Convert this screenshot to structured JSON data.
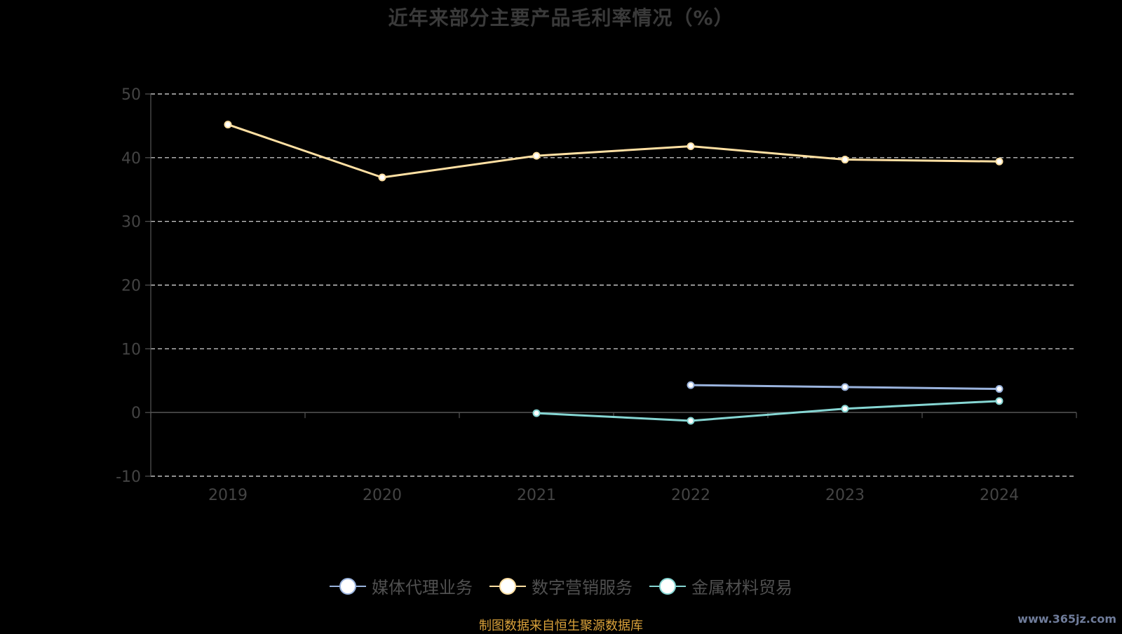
{
  "chart_data": {
    "type": "line",
    "title": "近年来部分主要产品毛利率情况（%）",
    "xlabel": "",
    "ylabel": "",
    "categories": [
      "2019",
      "2020",
      "2021",
      "2022",
      "2023",
      "2024"
    ],
    "ylim": [
      -10,
      50
    ],
    "yticks": [
      "-10",
      "0",
      "10",
      "20",
      "30",
      "40",
      "50"
    ],
    "grid": true,
    "legend_position": "bottom",
    "series": [
      {
        "name": "媒体代理业务",
        "color": "#9ab3dd",
        "values": [
          null,
          null,
          null,
          4.3,
          4.0,
          3.7
        ]
      },
      {
        "name": "数字营销服务",
        "color": "#ffe0a3",
        "values": [
          45.2,
          36.9,
          40.3,
          41.8,
          39.7,
          39.4
        ]
      },
      {
        "name": "金属材料贸易",
        "color": "#86d6d3",
        "values": [
          null,
          null,
          -0.1,
          -1.3,
          0.6,
          1.8
        ]
      }
    ]
  },
  "source_note": "制图数据来自恒生聚源数据库",
  "watermark": "www.365jz.com"
}
